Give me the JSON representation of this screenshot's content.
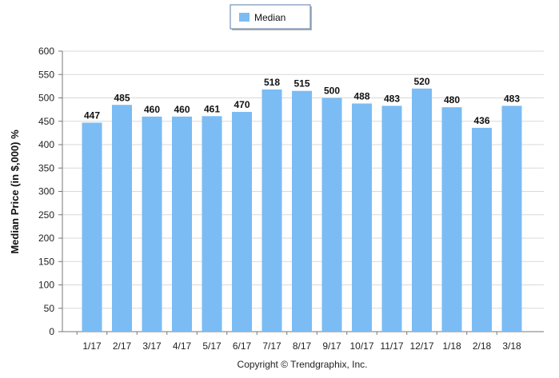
{
  "chart_data": {
    "type": "bar",
    "categories": [
      "1/17",
      "2/17",
      "3/17",
      "4/17",
      "5/17",
      "6/17",
      "7/17",
      "8/17",
      "9/17",
      "10/17",
      "11/17",
      "12/17",
      "1/18",
      "2/18",
      "3/18"
    ],
    "series": [
      {
        "name": "Median",
        "values": [
          447,
          485,
          460,
          460,
          461,
          470,
          518,
          515,
          500,
          488,
          483,
          520,
          480,
          436,
          483
        ]
      }
    ],
    "ylabel": "Median Price (in $,000) %",
    "xlabel": "",
    "ylim": [
      0,
      600
    ],
    "yticks": [
      0,
      50,
      100,
      150,
      200,
      250,
      300,
      350,
      400,
      450,
      500,
      550,
      600
    ],
    "grid": true,
    "legend_position": "top-center",
    "bar_color": "#7bbcf4",
    "data_labels": true
  },
  "footer": {
    "copyright": "Copyright © Trendgraphix, Inc."
  }
}
